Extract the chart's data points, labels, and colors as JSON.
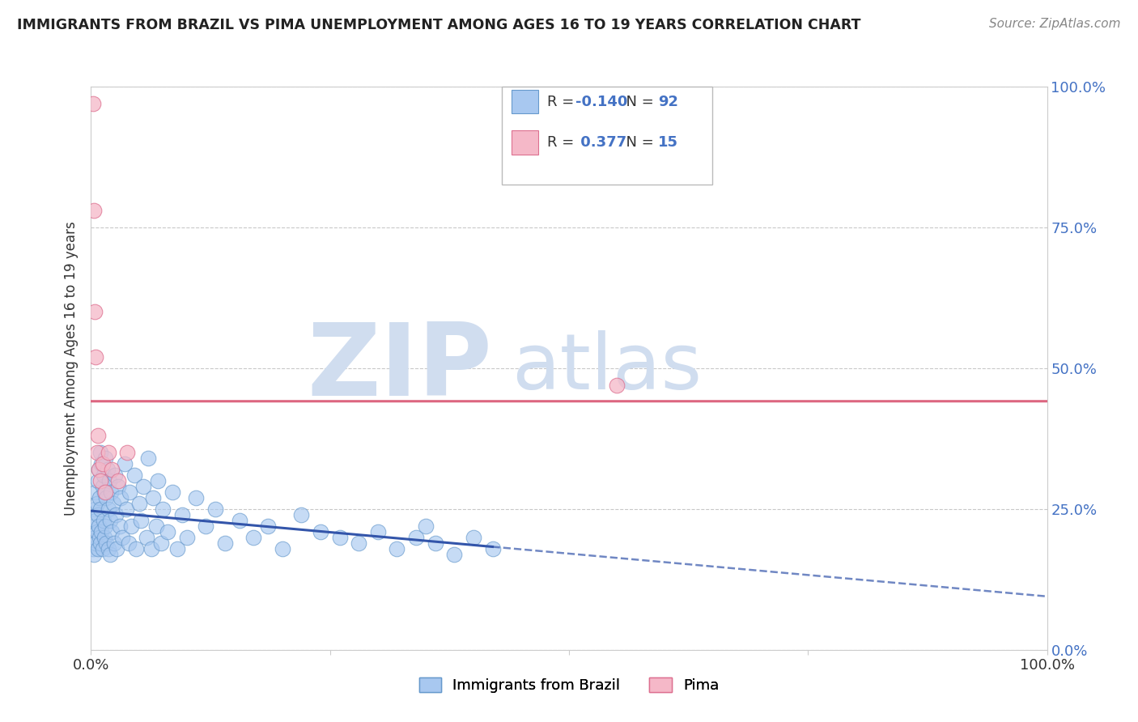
{
  "title": "IMMIGRANTS FROM BRAZIL VS PIMA UNEMPLOYMENT AMONG AGES 16 TO 19 YEARS CORRELATION CHART",
  "source": "Source: ZipAtlas.com",
  "ylabel": "Unemployment Among Ages 16 to 19 years",
  "series": [
    {
      "name": "Immigrants from Brazil",
      "color": "#A8C8F0",
      "edge_color": "#6699CC",
      "R": -0.14,
      "N": 92,
      "trend_color": "#3355AA",
      "trend_style_solid": "-",
      "trend_style_dash": "--"
    },
    {
      "name": "Pima",
      "color": "#F5B8C8",
      "edge_color": "#DD7090",
      "R": 0.377,
      "N": 15,
      "trend_color": "#DD6680",
      "trend_style": "-"
    }
  ],
  "blue_x": [
    0.002,
    0.003,
    0.003,
    0.004,
    0.004,
    0.005,
    0.005,
    0.005,
    0.006,
    0.006,
    0.007,
    0.007,
    0.007,
    0.008,
    0.008,
    0.009,
    0.009,
    0.01,
    0.01,
    0.01,
    0.011,
    0.011,
    0.012,
    0.012,
    0.013,
    0.013,
    0.014,
    0.014,
    0.015,
    0.015,
    0.016,
    0.016,
    0.017,
    0.018,
    0.018,
    0.019,
    0.02,
    0.02,
    0.021,
    0.022,
    0.023,
    0.024,
    0.025,
    0.026,
    0.027,
    0.028,
    0.03,
    0.031,
    0.033,
    0.035,
    0.037,
    0.039,
    0.04,
    0.042,
    0.045,
    0.047,
    0.05,
    0.052,
    0.055,
    0.058,
    0.06,
    0.063,
    0.065,
    0.068,
    0.07,
    0.073,
    0.075,
    0.08,
    0.085,
    0.09,
    0.095,
    0.1,
    0.11,
    0.12,
    0.13,
    0.14,
    0.155,
    0.17,
    0.185,
    0.2,
    0.22,
    0.24,
    0.26,
    0.28,
    0.3,
    0.32,
    0.34,
    0.35,
    0.36,
    0.38,
    0.4,
    0.42
  ],
  "blue_y": [
    0.18,
    0.22,
    0.17,
    0.25,
    0.2,
    0.28,
    0.23,
    0.19,
    0.26,
    0.21,
    0.3,
    0.24,
    0.18,
    0.32,
    0.22,
    0.27,
    0.2,
    0.35,
    0.25,
    0.19,
    0.33,
    0.21,
    0.29,
    0.18,
    0.31,
    0.23,
    0.28,
    0.2,
    0.34,
    0.22,
    0.27,
    0.19,
    0.32,
    0.25,
    0.18,
    0.3,
    0.23,
    0.17,
    0.28,
    0.21,
    0.26,
    0.19,
    0.31,
    0.24,
    0.18,
    0.29,
    0.22,
    0.27,
    0.2,
    0.33,
    0.25,
    0.19,
    0.28,
    0.22,
    0.31,
    0.18,
    0.26,
    0.23,
    0.29,
    0.2,
    0.34,
    0.18,
    0.27,
    0.22,
    0.3,
    0.19,
    0.25,
    0.21,
    0.28,
    0.18,
    0.24,
    0.2,
    0.27,
    0.22,
    0.25,
    0.19,
    0.23,
    0.2,
    0.22,
    0.18,
    0.24,
    0.21,
    0.2,
    0.19,
    0.21,
    0.18,
    0.2,
    0.22,
    0.19,
    0.17,
    0.2,
    0.18
  ],
  "pink_x": [
    0.002,
    0.003,
    0.004,
    0.005,
    0.006,
    0.007,
    0.008,
    0.01,
    0.012,
    0.015,
    0.018,
    0.022,
    0.028,
    0.038,
    0.55
  ],
  "pink_y": [
    0.97,
    0.78,
    0.6,
    0.52,
    0.35,
    0.38,
    0.32,
    0.3,
    0.33,
    0.28,
    0.35,
    0.32,
    0.3,
    0.35,
    0.47
  ],
  "xlim": [
    0.0,
    1.0
  ],
  "ylim": [
    0.0,
    1.0
  ],
  "right_yticklabels": [
    "0.0%",
    "25.0%",
    "50.0%",
    "75.0%",
    "100.0%"
  ],
  "xticklabels": [
    "0.0%",
    "100.0%"
  ],
  "background_color": "#FFFFFF",
  "grid_color": "#BBBBBB",
  "watermark": "ZIPatlas",
  "watermark_color": "#D0DDEF",
  "legend_R_color": "#4472C4"
}
